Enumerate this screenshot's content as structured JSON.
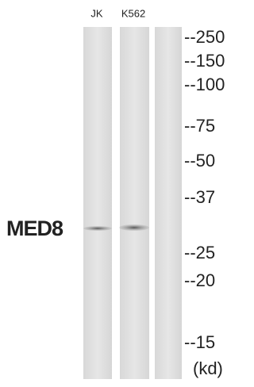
{
  "lanes": [
    "JK",
    "K562",
    null
  ],
  "protein_label": "MED8",
  "markers": [
    "--250",
    "--150",
    "--100",
    "--75",
    "--50",
    "--37",
    "--25",
    "--20",
    "--15"
  ],
  "unit": "(kd)"
}
